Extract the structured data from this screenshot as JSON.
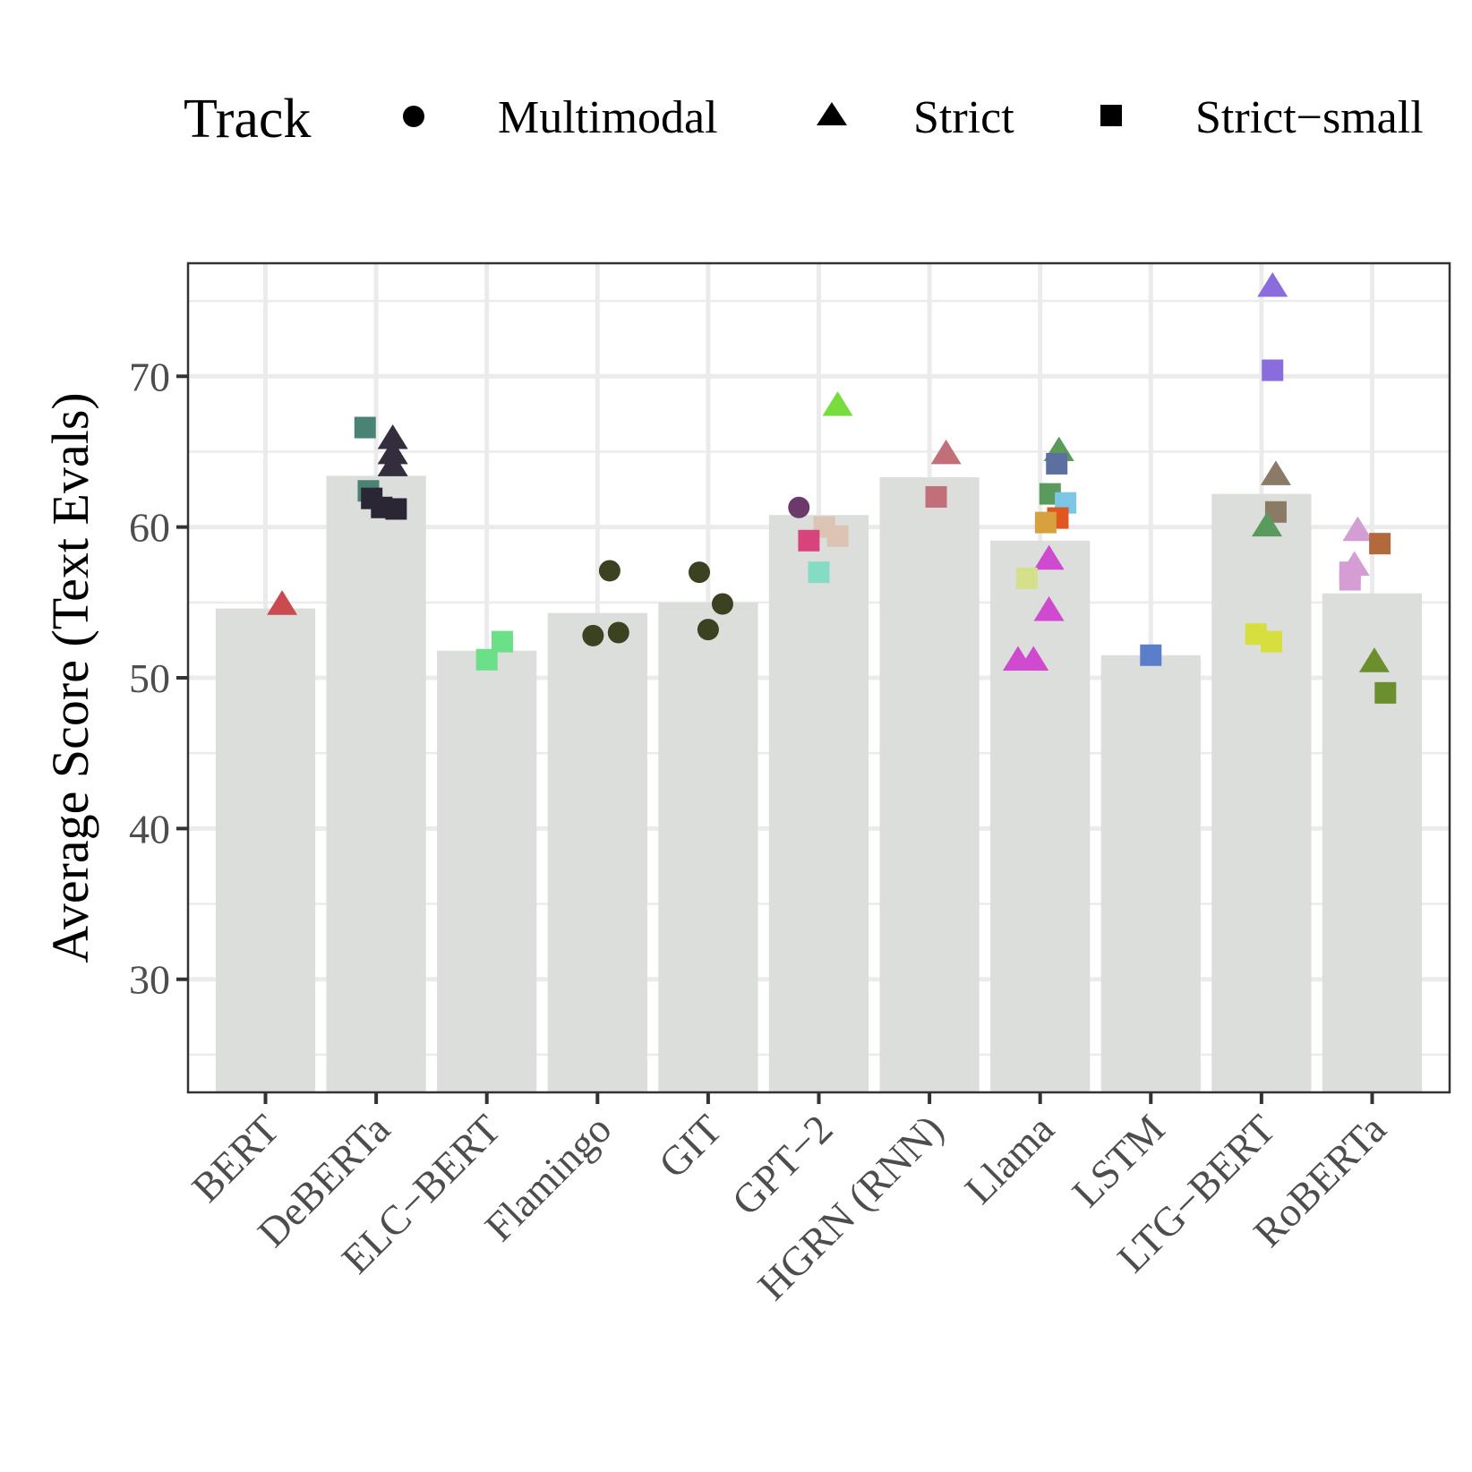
{
  "chart_data": {
    "type": "bar",
    "title": "",
    "xlabel": "",
    "ylabel": "Average Score (Text Evals)",
    "ylim": [
      22.5,
      77.5
    ],
    "y_ticks": [
      30,
      40,
      50,
      60,
      70
    ],
    "grid": true,
    "legend": {
      "title": "Track",
      "position": "top",
      "entries": [
        {
          "label": "Multimodal",
          "shape": "circle"
        },
        {
          "label": "Strict",
          "shape": "triangle"
        },
        {
          "label": "Strict−small",
          "shape": "square"
        }
      ]
    },
    "categories": [
      "BERT",
      "DeBERTa",
      "ELC−BERT",
      "Flamingo",
      "GIT",
      "GPT−2",
      "HGRN (RNN)",
      "Llama",
      "LSTM",
      "LTG−BERT",
      "RoBERTa"
    ],
    "bar_values": [
      54.6,
      63.4,
      51.8,
      54.3,
      55.0,
      60.8,
      63.3,
      59.1,
      51.5,
      62.2,
      55.6
    ],
    "points": [
      {
        "category": "BERT",
        "track": "Strict",
        "value": 54.8,
        "jitter": 0.15,
        "color": "#c94a4f"
      },
      {
        "category": "DeBERTa",
        "track": "Strict-small",
        "value": 66.6,
        "jitter": -0.1,
        "color": "#4b8276"
      },
      {
        "category": "DeBERTa",
        "track": "Strict",
        "value": 65.8,
        "jitter": 0.15,
        "color": "#332d3d"
      },
      {
        "category": "DeBERTa",
        "track": "Strict",
        "value": 64.8,
        "jitter": 0.15,
        "color": "#332d3d"
      },
      {
        "category": "DeBERTa",
        "track": "Strict",
        "value": 64.0,
        "jitter": 0.15,
        "color": "#332d3d"
      },
      {
        "category": "DeBERTa",
        "track": "Strict-small",
        "value": 62.4,
        "jitter": -0.07,
        "color": "#4b8276"
      },
      {
        "category": "DeBERTa",
        "track": "Strict-small",
        "value": 61.9,
        "jitter": -0.04,
        "color": "#2b2633"
      },
      {
        "category": "DeBERTa",
        "track": "Strict-small",
        "value": 61.3,
        "jitter": 0.05,
        "color": "#2b2633"
      },
      {
        "category": "DeBERTa",
        "track": "Strict-small",
        "value": 61.2,
        "jitter": 0.18,
        "color": "#2b2633"
      },
      {
        "category": "ELC−BERT",
        "track": "Strict-small",
        "value": 52.4,
        "jitter": 0.14,
        "color": "#6be089"
      },
      {
        "category": "ELC−BERT",
        "track": "Strict-small",
        "value": 51.2,
        "jitter": 0.0,
        "color": "#6be089"
      },
      {
        "category": "Flamingo",
        "track": "Multimodal",
        "value": 57.1,
        "jitter": 0.11,
        "color": "#3b4222"
      },
      {
        "category": "Flamingo",
        "track": "Multimodal",
        "value": 53.0,
        "jitter": 0.19,
        "color": "#3b4222"
      },
      {
        "category": "Flamingo",
        "track": "Multimodal",
        "value": 52.8,
        "jitter": -0.04,
        "color": "#3b4222"
      },
      {
        "category": "GIT",
        "track": "Multimodal",
        "value": 57.0,
        "jitter": -0.08,
        "color": "#3b4222"
      },
      {
        "category": "GIT",
        "track": "Multimodal",
        "value": 54.9,
        "jitter": 0.13,
        "color": "#3b4222"
      },
      {
        "category": "GIT",
        "track": "Multimodal",
        "value": 53.2,
        "jitter": 0.0,
        "color": "#3b4222"
      },
      {
        "category": "GPT−2",
        "track": "Strict",
        "value": 68.0,
        "jitter": 0.17,
        "color": "#77dd3e"
      },
      {
        "category": "GPT−2",
        "track": "Multimodal",
        "value": 61.3,
        "jitter": -0.18,
        "color": "#6b3a6a"
      },
      {
        "category": "GPT−2",
        "track": "Strict-small",
        "value": 60.0,
        "jitter": 0.05,
        "color": "#dcc4b4"
      },
      {
        "category": "GPT−2",
        "track": "Strict-small",
        "value": 59.4,
        "jitter": 0.17,
        "color": "#dcc4b4"
      },
      {
        "category": "GPT−2",
        "track": "Strict-small",
        "value": 59.1,
        "jitter": -0.09,
        "color": "#d7447b"
      },
      {
        "category": "GPT−2",
        "track": "Strict-small",
        "value": 57.0,
        "jitter": 0.0,
        "color": "#84dcc4"
      },
      {
        "category": "HGRN (RNN)",
        "track": "Strict",
        "value": 64.8,
        "jitter": 0.15,
        "color": "#c27078"
      },
      {
        "category": "HGRN (RNN)",
        "track": "Strict-small",
        "value": 62.0,
        "jitter": 0.06,
        "color": "#c27078"
      },
      {
        "category": "Llama",
        "track": "Strict",
        "value": 65.0,
        "jitter": 0.17,
        "color": "#5a9a5c"
      },
      {
        "category": "Llama",
        "track": "Strict-small",
        "value": 64.2,
        "jitter": 0.15,
        "color": "#5d6f9f"
      },
      {
        "category": "Llama",
        "track": "Strict-small",
        "value": 62.2,
        "jitter": 0.09,
        "color": "#5a9a5c"
      },
      {
        "category": "Llama",
        "track": "Strict-small",
        "value": 61.6,
        "jitter": 0.23,
        "color": "#7cc7e6"
      },
      {
        "category": "Llama",
        "track": "Strict-small",
        "value": 60.6,
        "jitter": 0.16,
        "color": "#e0571f"
      },
      {
        "category": "Llama",
        "track": "Strict-small",
        "value": 60.3,
        "jitter": 0.05,
        "color": "#d8a03e"
      },
      {
        "category": "Llama",
        "track": "Strict",
        "value": 57.8,
        "jitter": 0.08,
        "color": "#d04ad0"
      },
      {
        "category": "Llama",
        "track": "Strict-small",
        "value": 56.6,
        "jitter": -0.12,
        "color": "#d6df8c"
      },
      {
        "category": "Llama",
        "track": "Strict",
        "value": 54.4,
        "jitter": 0.08,
        "color": "#d04ad0"
      },
      {
        "category": "Llama",
        "track": "Strict",
        "value": 51.1,
        "jitter": -0.2,
        "color": "#d04ad0"
      },
      {
        "category": "Llama",
        "track": "Strict",
        "value": 51.1,
        "jitter": -0.06,
        "color": "#d04ad0"
      },
      {
        "category": "LSTM",
        "track": "Strict-small",
        "value": 51.5,
        "jitter": 0.0,
        "color": "#5b7ecb"
      },
      {
        "category": "LTG−BERT",
        "track": "Strict",
        "value": 75.9,
        "jitter": 0.1,
        "color": "#8a6cdc"
      },
      {
        "category": "LTG−BERT",
        "track": "Strict-small",
        "value": 70.4,
        "jitter": 0.1,
        "color": "#8a6cdc"
      },
      {
        "category": "LTG−BERT",
        "track": "Strict",
        "value": 63.4,
        "jitter": 0.13,
        "color": "#8b7a66"
      },
      {
        "category": "LTG−BERT",
        "track": "Strict-small",
        "value": 61.0,
        "jitter": 0.13,
        "color": "#8b7a66"
      },
      {
        "category": "LTG−BERT",
        "track": "Strict",
        "value": 60.0,
        "jitter": 0.05,
        "color": "#5a9a5c"
      },
      {
        "category": "LTG−BERT",
        "track": "Strict-small",
        "value": 52.9,
        "jitter": -0.05,
        "color": "#d6df3e"
      },
      {
        "category": "LTG−BERT",
        "track": "Strict-small",
        "value": 52.4,
        "jitter": 0.09,
        "color": "#d6df3e"
      },
      {
        "category": "RoBERTa",
        "track": "Strict",
        "value": 59.7,
        "jitter": -0.13,
        "color": "#d49ed4"
      },
      {
        "category": "RoBERTa",
        "track": "Strict-small",
        "value": 58.9,
        "jitter": 0.07,
        "color": "#b26a3c"
      },
      {
        "category": "RoBERTa",
        "track": "Strict",
        "value": 57.4,
        "jitter": -0.16,
        "color": "#d49ed4"
      },
      {
        "category": "RoBERTa",
        "track": "Strict-small",
        "value": 57.0,
        "jitter": -0.2,
        "color": "#d49ed4"
      },
      {
        "category": "RoBERTa",
        "track": "Strict-small",
        "value": 56.5,
        "jitter": -0.2,
        "color": "#d49ed4"
      },
      {
        "category": "RoBERTa",
        "track": "Strict",
        "value": 51.0,
        "jitter": 0.02,
        "color": "#6b8f2e"
      },
      {
        "category": "RoBERTa",
        "track": "Strict-small",
        "value": 49.0,
        "jitter": 0.12,
        "color": "#6b8f2e"
      }
    ],
    "colors": {
      "bar": "#dcdedb",
      "panel_border": "#333333",
      "grid": "#ebebeb",
      "tick": "#333333"
    }
  }
}
